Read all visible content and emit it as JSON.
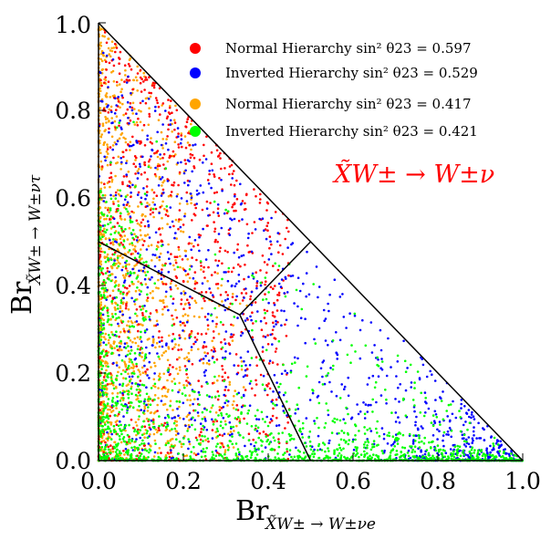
{
  "chart_data": {
    "type": "scatter",
    "title": "",
    "annotation": "X̃W± → W±ν",
    "annotation_color": "#ff0000",
    "xlabel": {
      "main": "Br",
      "sub": "X̃W± → W±νe"
    },
    "ylabel": {
      "main": "Br",
      "sub": "X̃W± → W±ντ"
    },
    "xlim": [
      0.0,
      1.0
    ],
    "ylim": [
      0.0,
      1.0
    ],
    "xticks": [
      "0.0",
      "0.2",
      "0.4",
      "0.6",
      "0.8",
      "1.0"
    ],
    "yticks": [
      "0.0",
      "0.2",
      "0.4",
      "0.6",
      "0.8",
      "1.0"
    ],
    "grid": false,
    "legend_position": "top-right",
    "series": [
      {
        "name": "Normal Hierarchy sin² θ23 = 0.597",
        "color": "#ff0000"
      },
      {
        "name": "Inverted Hierarchy sin² θ23 = 0.529",
        "color": "#0000ff"
      },
      {
        "name": "Normal Hierarchy sin² θ23 = 0.417",
        "color": "#ffa500"
      },
      {
        "name": "Inverted Hierarchy sin² θ23 = 0.421",
        "color": "#00ff00"
      }
    ],
    "boundary": [
      [
        0,
        1
      ],
      [
        1,
        0
      ]
    ],
    "dividers": {
      "center": [
        0.333,
        0.333
      ],
      "ends": [
        [
          0.0,
          0.5
        ],
        [
          0.5,
          0.0
        ],
        [
          0.5,
          0.5
        ]
      ]
    }
  }
}
